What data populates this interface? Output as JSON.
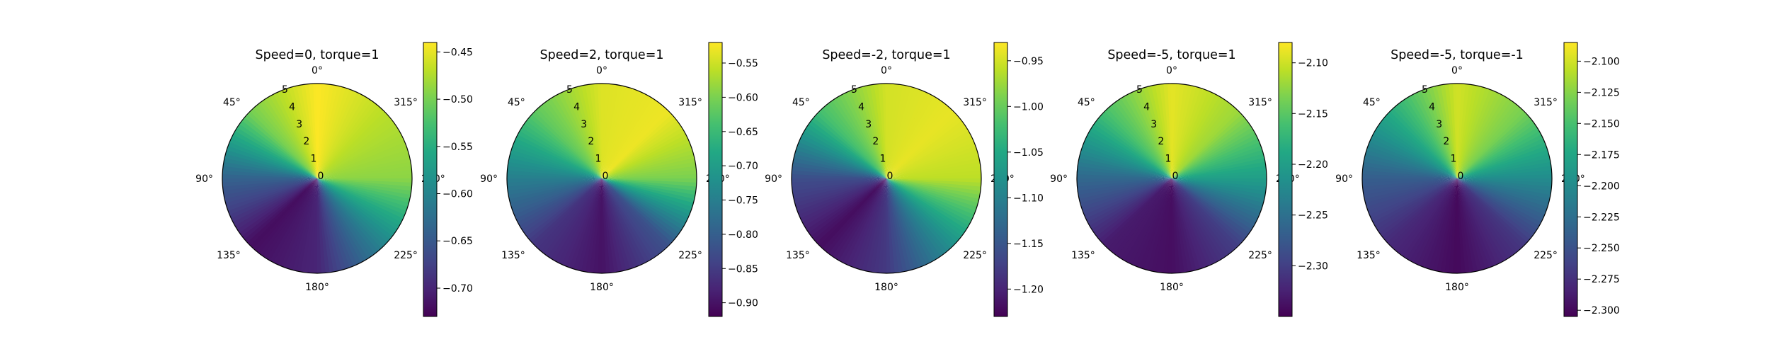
{
  "chart_data": [
    {
      "type": "heatmap",
      "projection": "polar",
      "title": "Speed=0, torque=1",
      "theta_ticks": [
        "0°",
        "45°",
        "90°",
        "135°",
        "180°",
        "225°",
        "270°",
        "315°"
      ],
      "r_ticks": [
        "0",
        "1",
        "2",
        "3",
        "4",
        "5"
      ],
      "value_by_angle": {
        "angle_deg": [
          0,
          45,
          90,
          135,
          180,
          225,
          270,
          315,
          360
        ],
        "value": [
          -0.44,
          -0.5,
          -0.64,
          -0.72,
          -0.7,
          -0.6,
          -0.49,
          -0.47,
          -0.44
        ]
      },
      "colorbar": {
        "ticks": [
          "-0.45",
          "-0.50",
          "-0.55",
          "-0.60",
          "-0.65",
          "-0.70"
        ],
        "tick_values": [
          -0.45,
          -0.5,
          -0.55,
          -0.6,
          -0.65,
          -0.7
        ],
        "range": [
          -0.73,
          -0.44
        ]
      },
      "colormap": "viridis"
    },
    {
      "type": "heatmap",
      "projection": "polar",
      "title": "Speed=2, torque=1",
      "theta_ticks": [
        "0°",
        "45°",
        "90°",
        "135°",
        "180°",
        "225°",
        "270°",
        "315°"
      ],
      "r_ticks": [
        "0",
        "1",
        "2",
        "3",
        "4",
        "5"
      ],
      "value_by_angle": {
        "angle_deg": [
          0,
          45,
          90,
          135,
          180,
          225,
          270,
          315,
          360
        ],
        "value": [
          -0.54,
          -0.62,
          -0.75,
          -0.86,
          -0.9,
          -0.82,
          -0.6,
          -0.53,
          -0.54
        ]
      },
      "colorbar": {
        "ticks": [
          "-0.55",
          "-0.60",
          "-0.65",
          "-0.70",
          "-0.75",
          "-0.80",
          "-0.85",
          "-0.90"
        ],
        "tick_values": [
          -0.55,
          -0.6,
          -0.65,
          -0.7,
          -0.75,
          -0.8,
          -0.85,
          -0.9
        ],
        "range": [
          -0.92,
          -0.52
        ]
      },
      "colormap": "viridis"
    },
    {
      "type": "heatmap",
      "projection": "polar",
      "title": "Speed=-2, torque=1",
      "theta_ticks": [
        "0°",
        "45°",
        "90°",
        "135°",
        "180°",
        "225°",
        "270°",
        "315°"
      ],
      "r_ticks": [
        "0",
        "1",
        "2",
        "3",
        "4",
        "5"
      ],
      "value_by_angle": {
        "angle_deg": [
          0,
          45,
          90,
          135,
          180,
          225,
          270,
          315,
          360
        ],
        "value": [
          -0.95,
          -1.02,
          -1.16,
          -1.22,
          -1.18,
          -1.08,
          -0.96,
          -0.94,
          -0.95
        ]
      },
      "colorbar": {
        "ticks": [
          "-0.95",
          "-1.00",
          "-1.05",
          "-1.10",
          "-1.15",
          "-1.20"
        ],
        "tick_values": [
          -0.95,
          -1.0,
          -1.05,
          -1.1,
          -1.15,
          -1.2
        ],
        "range": [
          -1.23,
          -0.93
        ]
      },
      "colormap": "viridis"
    },
    {
      "type": "heatmap",
      "projection": "polar",
      "title": "Speed=-5, torque=1",
      "theta_ticks": [
        "0°",
        "45°",
        "90°",
        "135°",
        "180°",
        "225°",
        "270°",
        "315°"
      ],
      "r_ticks": [
        "0",
        "1",
        "2",
        "3",
        "4",
        "5"
      ],
      "value_by_angle": {
        "angle_deg": [
          0,
          45,
          90,
          135,
          180,
          225,
          270,
          315,
          360
        ],
        "value": [
          -2.09,
          -2.16,
          -2.26,
          -2.33,
          -2.34,
          -2.3,
          -2.2,
          -2.12,
          -2.09
        ]
      },
      "colorbar": {
        "ticks": [
          "-2.10",
          "-2.15",
          "-2.20",
          "-2.25",
          "-2.30"
        ],
        "tick_values": [
          -2.1,
          -2.15,
          -2.2,
          -2.25,
          -2.3
        ],
        "range": [
          -2.35,
          -2.08
        ]
      },
      "colormap": "viridis"
    },
    {
      "type": "heatmap",
      "projection": "polar",
      "title": "Speed=-5, torque=-1",
      "theta_ticks": [
        "0°",
        "45°",
        "90°",
        "135°",
        "180°",
        "225°",
        "270°",
        "315°"
      ],
      "r_ticks": [
        "0",
        "1",
        "2",
        "3",
        "4",
        "5"
      ],
      "value_by_angle": {
        "angle_deg": [
          0,
          45,
          90,
          135,
          180,
          225,
          270,
          315,
          360
        ],
        "value": [
          -2.1,
          -2.17,
          -2.24,
          -2.28,
          -2.3,
          -2.27,
          -2.2,
          -2.13,
          -2.1
        ]
      },
      "colorbar": {
        "ticks": [
          "-2.100",
          "-2.125",
          "-2.150",
          "-2.175",
          "-2.200",
          "-2.225",
          "-2.250",
          "-2.275",
          "-2.300"
        ],
        "tick_values": [
          -2.1,
          -2.125,
          -2.15,
          -2.175,
          -2.2,
          -2.225,
          -2.25,
          -2.275,
          -2.3
        ],
        "range": [
          -2.305,
          -2.085
        ]
      },
      "colormap": "viridis"
    }
  ]
}
